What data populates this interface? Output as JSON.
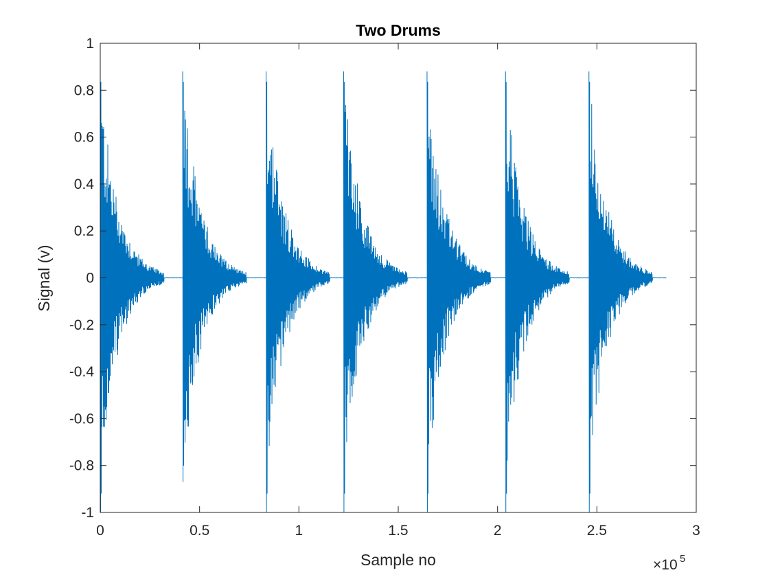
{
  "chart_data": {
    "type": "line",
    "title": "Two Drums",
    "xlabel": "Sample no",
    "ylabel": "Signal (v)",
    "xlim": [
      0,
      300000
    ],
    "ylim": [
      -1,
      1
    ],
    "x_exponent_label": "×10",
    "x_exponent_power": "5",
    "x_ticks": [
      0,
      50000,
      100000,
      150000,
      200000,
      250000,
      300000
    ],
    "x_tick_labels": [
      "0",
      "0.5",
      "1",
      "1.5",
      "2",
      "2.5",
      "3"
    ],
    "y_ticks": [
      -1,
      -0.8,
      -0.6,
      -0.4,
      -0.2,
      0,
      0.2,
      0.4,
      0.6,
      0.8,
      1
    ],
    "y_tick_labels": [
      "-1",
      "-0.8",
      "-0.6",
      "-0.4",
      "-0.2",
      "0",
      "0.2",
      "0.4",
      "0.6",
      "0.8",
      "1"
    ],
    "grid": false,
    "line_color": "#0072BD",
    "signal_end": 285000,
    "series": [
      {
        "values_note": "",
        "hits": [
          {
            "start": 0,
            "peak_pos": 0.88,
            "peak_neg": -1.0
          },
          {
            "start": 41500,
            "peak_pos": 0.88,
            "peak_neg": -0.87
          },
          {
            "start": 83500,
            "peak_pos": 0.88,
            "peak_neg": -1.0
          },
          {
            "start": 122500,
            "peak_pos": 0.88,
            "peak_neg": -1.0
          },
          {
            "start": 164500,
            "peak_pos": 0.88,
            "peak_neg": -1.0
          },
          {
            "start": 204000,
            "peak_pos": 0.88,
            "peak_neg": -1.0
          },
          {
            "start": 246000,
            "peak_pos": 0.88,
            "peak_neg": -1.0
          }
        ]
      }
    ]
  }
}
